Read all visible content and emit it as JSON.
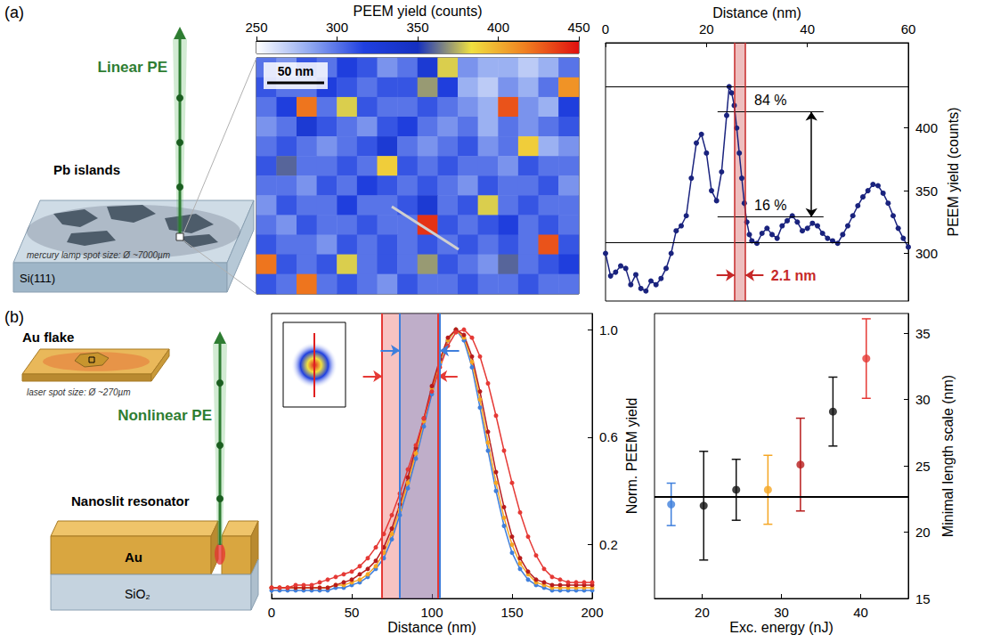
{
  "panel_labels": [
    "(a)",
    "(b)"
  ],
  "schematics": {
    "a": {
      "beam": "Linear PE",
      "islands": "Pb islands",
      "spot": "mercury lamp spot size: Ø ~7000µm",
      "substrate": "Si(111)"
    },
    "b": {
      "beam": "Nonlinear PE",
      "flake": "Au flake",
      "spot": "laser spot size: Ø ~270µm",
      "resonator": "Nanoslit resonator",
      "metal": "Au",
      "substrate": "SiO₂"
    }
  },
  "chart_data": [
    {
      "type": "heatmap",
      "color_title": "PEEM yield (counts)",
      "color_range": [
        250,
        450
      ],
      "color_ticks": [
        250,
        300,
        350,
        400,
        450
      ],
      "scale_bar": "50 nm",
      "tick_labels": false,
      "cells": [
        [
          300,
          290,
          310,
          300,
          320,
          310,
          290,
          300,
          330,
          380,
          290,
          280,
          280,
          270,
          280,
          300
        ],
        [
          310,
          300,
          300,
          320,
          310,
          300,
          310,
          310,
          370,
          320,
          280,
          270,
          290,
          280,
          300,
          410
        ],
        [
          300,
          320,
          420,
          300,
          380,
          310,
          300,
          300,
          310,
          300,
          290,
          280,
          430,
          290,
          280,
          320
        ],
        [
          290,
          300,
          330,
          310,
          300,
          290,
          310,
          320,
          300,
          290,
          300,
          280,
          300,
          290,
          300,
          310
        ],
        [
          300,
          310,
          300,
          290,
          300,
          310,
          330,
          300,
          290,
          300,
          310,
          290,
          300,
          390,
          280,
          290
        ],
        [
          310,
          360,
          300,
          300,
          310,
          300,
          390,
          310,
          300,
          310,
          300,
          300,
          290,
          310,
          300,
          300
        ],
        [
          300,
          300,
          290,
          310,
          300,
          320,
          310,
          300,
          310,
          300,
          290,
          310,
          300,
          300,
          310,
          290
        ],
        [
          290,
          310,
          300,
          300,
          320,
          300,
          300,
          310,
          330,
          300,
          310,
          380,
          300,
          310,
          300,
          300
        ],
        [
          300,
          290,
          310,
          300,
          300,
          310,
          300,
          300,
          440,
          310,
          300,
          310,
          320,
          300,
          310,
          300
        ],
        [
          310,
          300,
          300,
          290,
          310,
          300,
          310,
          300,
          310,
          300,
          310,
          300,
          310,
          300,
          430,
          310
        ],
        [
          420,
          310,
          300,
          310,
          380,
          300,
          310,
          300,
          370,
          310,
          300,
          290,
          360,
          300,
          310,
          320
        ],
        [
          310,
          300,
          420,
          300,
          310,
          300,
          290,
          310,
          300,
          300,
          310,
          300,
          300,
          310,
          300,
          300
        ]
      ]
    },
    {
      "type": "line",
      "x_label": "Distance (nm)",
      "y_label": "PEEM yield (counts)",
      "color": "#1a237e",
      "marker": "circle",
      "grid": false,
      "x": [
        0,
        1,
        2,
        3,
        4,
        5,
        6,
        7,
        8,
        9,
        10,
        11,
        12,
        13,
        14,
        15,
        16,
        17,
        18,
        19,
        20,
        21,
        22,
        23,
        24,
        24.5,
        25,
        25.5,
        26,
        26.5,
        27,
        27.5,
        28,
        28.5,
        29,
        30,
        31,
        32,
        33,
        34,
        35,
        36,
        37,
        38,
        39,
        40,
        41,
        42,
        43,
        44,
        45,
        46,
        47,
        48,
        49,
        50,
        51,
        52,
        53,
        54,
        55,
        56,
        57,
        58,
        59,
        60
      ],
      "values": [
        300,
        282,
        285,
        290,
        288,
        275,
        283,
        272,
        270,
        278,
        275,
        280,
        288,
        300,
        318,
        322,
        330,
        360,
        388,
        395,
        380,
        350,
        342,
        365,
        410,
        433,
        428,
        418,
        400,
        380,
        360,
        340,
        325,
        315,
        310,
        308,
        316,
        320,
        315,
        312,
        322,
        326,
        330,
        325,
        318,
        320,
        324,
        322,
        316,
        312,
        310,
        308,
        315,
        322,
        330,
        338,
        345,
        350,
        355,
        354,
        348,
        340,
        330,
        320,
        312,
        305
      ],
      "xlim": [
        0,
        60
      ],
      "xticks": [
        0,
        20,
        40,
        60
      ],
      "ylim": [
        262,
        468
      ],
      "yticks": [
        300,
        350,
        400
      ],
      "hlines": [
        433,
        309
      ],
      "levels": [
        {
          "value": 413,
          "label": "84 %"
        },
        {
          "value": 329,
          "label": "16 %"
        }
      ],
      "band": {
        "range": [
          25.6,
          27.7
        ],
        "label": "2.1 nm",
        "color": "#c62828"
      }
    },
    {
      "type": "line",
      "x_label": "Distance (nm)",
      "y_label": "Norm. PEEM yield",
      "marker": "circle",
      "grid": false,
      "x": [
        0,
        5,
        10,
        15,
        20,
        25,
        30,
        35,
        40,
        45,
        50,
        55,
        60,
        65,
        70,
        75,
        80,
        85,
        90,
        95,
        100,
        105,
        110,
        115,
        120,
        125,
        130,
        135,
        140,
        145,
        150,
        155,
        160,
        165,
        170,
        175,
        180,
        185,
        190,
        195,
        200
      ],
      "series": [
        {
          "color": "#3f7fdc",
          "values": [
            0.03,
            0.03,
            0.03,
            0.03,
            0.03,
            0.03,
            0.03,
            0.03,
            0.04,
            0.04,
            0.05,
            0.06,
            0.08,
            0.11,
            0.15,
            0.22,
            0.31,
            0.41,
            0.52,
            0.64,
            0.76,
            0.87,
            0.96,
            1.0,
            0.96,
            0.86,
            0.71,
            0.55,
            0.4,
            0.27,
            0.17,
            0.11,
            0.07,
            0.05,
            0.04,
            0.03,
            0.03,
            0.03,
            0.03,
            0.03,
            0.03
          ]
        },
        {
          "color": "#f5a623",
          "values": [
            0.04,
            0.04,
            0.04,
            0.04,
            0.04,
            0.04,
            0.04,
            0.04,
            0.05,
            0.05,
            0.06,
            0.07,
            0.09,
            0.12,
            0.17,
            0.24,
            0.33,
            0.43,
            0.54,
            0.66,
            0.78,
            0.88,
            0.96,
            1.0,
            0.97,
            0.88,
            0.74,
            0.58,
            0.43,
            0.3,
            0.2,
            0.13,
            0.09,
            0.06,
            0.05,
            0.04,
            0.04,
            0.04,
            0.04,
            0.04,
            0.04
          ]
        },
        {
          "color": "#b71c1c",
          "values": [
            0.04,
            0.04,
            0.04,
            0.04,
            0.04,
            0.04,
            0.04,
            0.04,
            0.05,
            0.06,
            0.07,
            0.09,
            0.11,
            0.14,
            0.19,
            0.26,
            0.35,
            0.45,
            0.56,
            0.67,
            0.79,
            0.89,
            0.97,
            1.0,
            0.98,
            0.9,
            0.77,
            0.62,
            0.47,
            0.34,
            0.23,
            0.15,
            0.1,
            0.07,
            0.06,
            0.05,
            0.05,
            0.05,
            0.05,
            0.05,
            0.05
          ]
        },
        {
          "color": "#e53935",
          "values": [
            0.04,
            0.04,
            0.04,
            0.05,
            0.05,
            0.05,
            0.06,
            0.07,
            0.08,
            0.09,
            0.1,
            0.12,
            0.15,
            0.19,
            0.24,
            0.31,
            0.39,
            0.48,
            0.57,
            0.67,
            0.77,
            0.86,
            0.94,
            0.99,
            1.0,
            0.97,
            0.9,
            0.8,
            0.68,
            0.55,
            0.43,
            0.32,
            0.23,
            0.16,
            0.11,
            0.08,
            0.07,
            0.06,
            0.06,
            0.06,
            0.06
          ]
        }
      ],
      "xlim": [
        0,
        200
      ],
      "xticks": [
        0,
        50,
        100,
        150,
        200
      ],
      "ylim": [
        0,
        1.06
      ],
      "yticks": [
        0.2,
        0.6,
        {
          "value": 1,
          "label": "1.0"
        }
      ],
      "bands": [
        {
          "range": [
            69,
            104
          ],
          "color": "#e53935"
        },
        {
          "range": [
            80,
            105
          ],
          "color": "#3f7fdc"
        }
      ]
    },
    {
      "type": "scatter",
      "x_label": "Exc. energy (nJ)",
      "y_label": "Minimal length scale (nm)",
      "marker": "circle",
      "grid": false,
      "x": [
        16.1,
        20.2,
        24.3,
        28.3,
        32.4,
        36.5,
        40.7
      ],
      "values": [
        22.1,
        22.0,
        23.2,
        23.2,
        25.1,
        29.1,
        33.1
      ],
      "errors": [
        1.6,
        4.1,
        2.3,
        2.6,
        3.5,
        2.6,
        3.0
      ],
      "colors": [
        "#3f7fdc",
        "#111111",
        "#111111",
        "#f5a623",
        "#b71c1c",
        "#111111",
        "#e53935"
      ],
      "hline": 22.7,
      "xlim": [
        14,
        46
      ],
      "xticks": [
        20,
        30,
        40
      ],
      "ylim": [
        15,
        36.5
      ],
      "yticks": [
        15,
        20,
        25,
        30,
        35
      ]
    }
  ]
}
